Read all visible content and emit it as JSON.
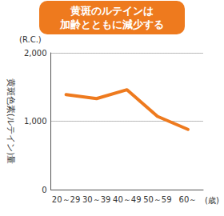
{
  "chart_data": {
    "type": "line",
    "title": "黄斑のルテインは\n加齢とともに減少する",
    "ylabel": "黄斑色素(ルテイン)量",
    "y_unit": "(R.C.)",
    "xlabel": "(歳)",
    "categories": [
      "20～29",
      "30～39",
      "40～49",
      "50～59",
      "60～"
    ],
    "values": [
      1390,
      1330,
      1460,
      1070,
      880
    ],
    "color": "#ee7a1e",
    "ylim": [
      0,
      2000
    ],
    "yticks": [
      0,
      1000,
      2000
    ],
    "grid": true
  }
}
